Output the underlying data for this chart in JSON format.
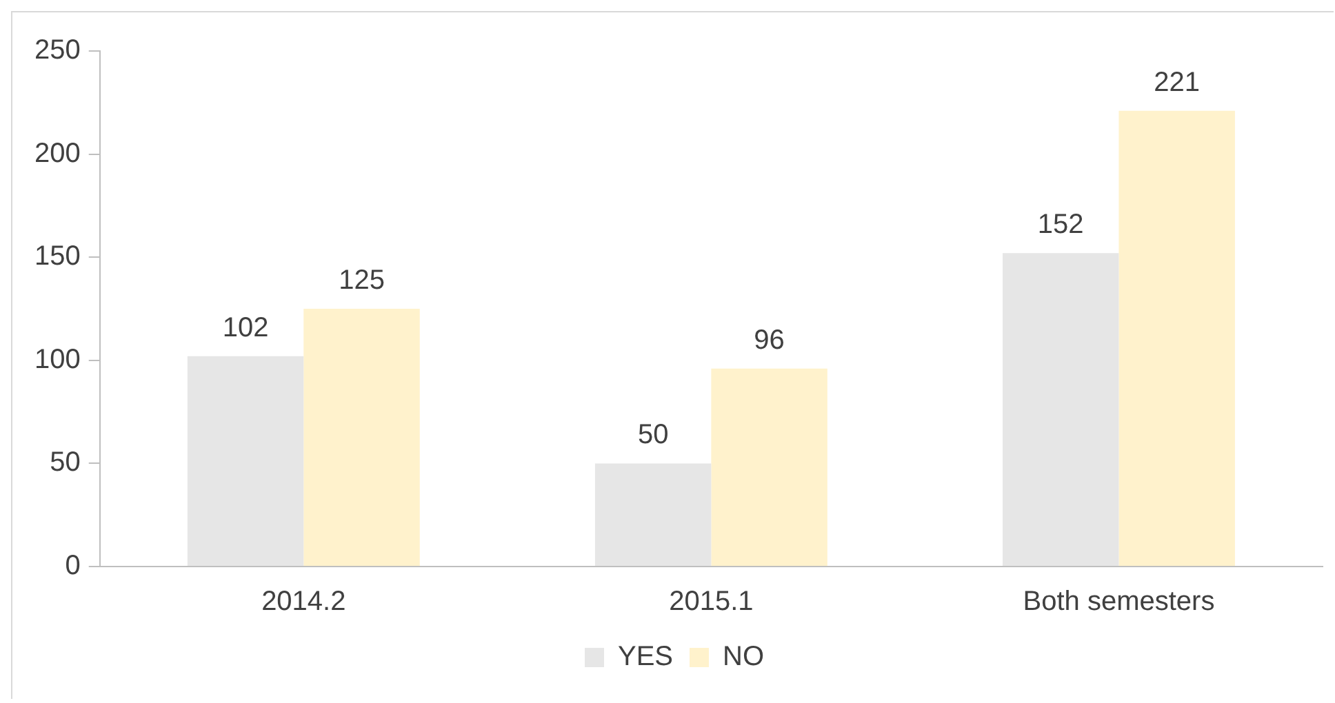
{
  "chart_data": {
    "type": "bar",
    "categories": [
      "2014.2",
      "2015.1",
      "Both semesters"
    ],
    "series": [
      {
        "name": "YES",
        "color": "#e6e6e6",
        "values": [
          102,
          50,
          152
        ]
      },
      {
        "name": "NO",
        "color": "#fff2cc",
        "values": [
          125,
          96,
          221
        ]
      }
    ],
    "ylim": [
      0,
      250
    ],
    "yticks": [
      0,
      50,
      100,
      150,
      200,
      250
    ],
    "grid": false,
    "legend": "bottom",
    "data_labels": true
  }
}
